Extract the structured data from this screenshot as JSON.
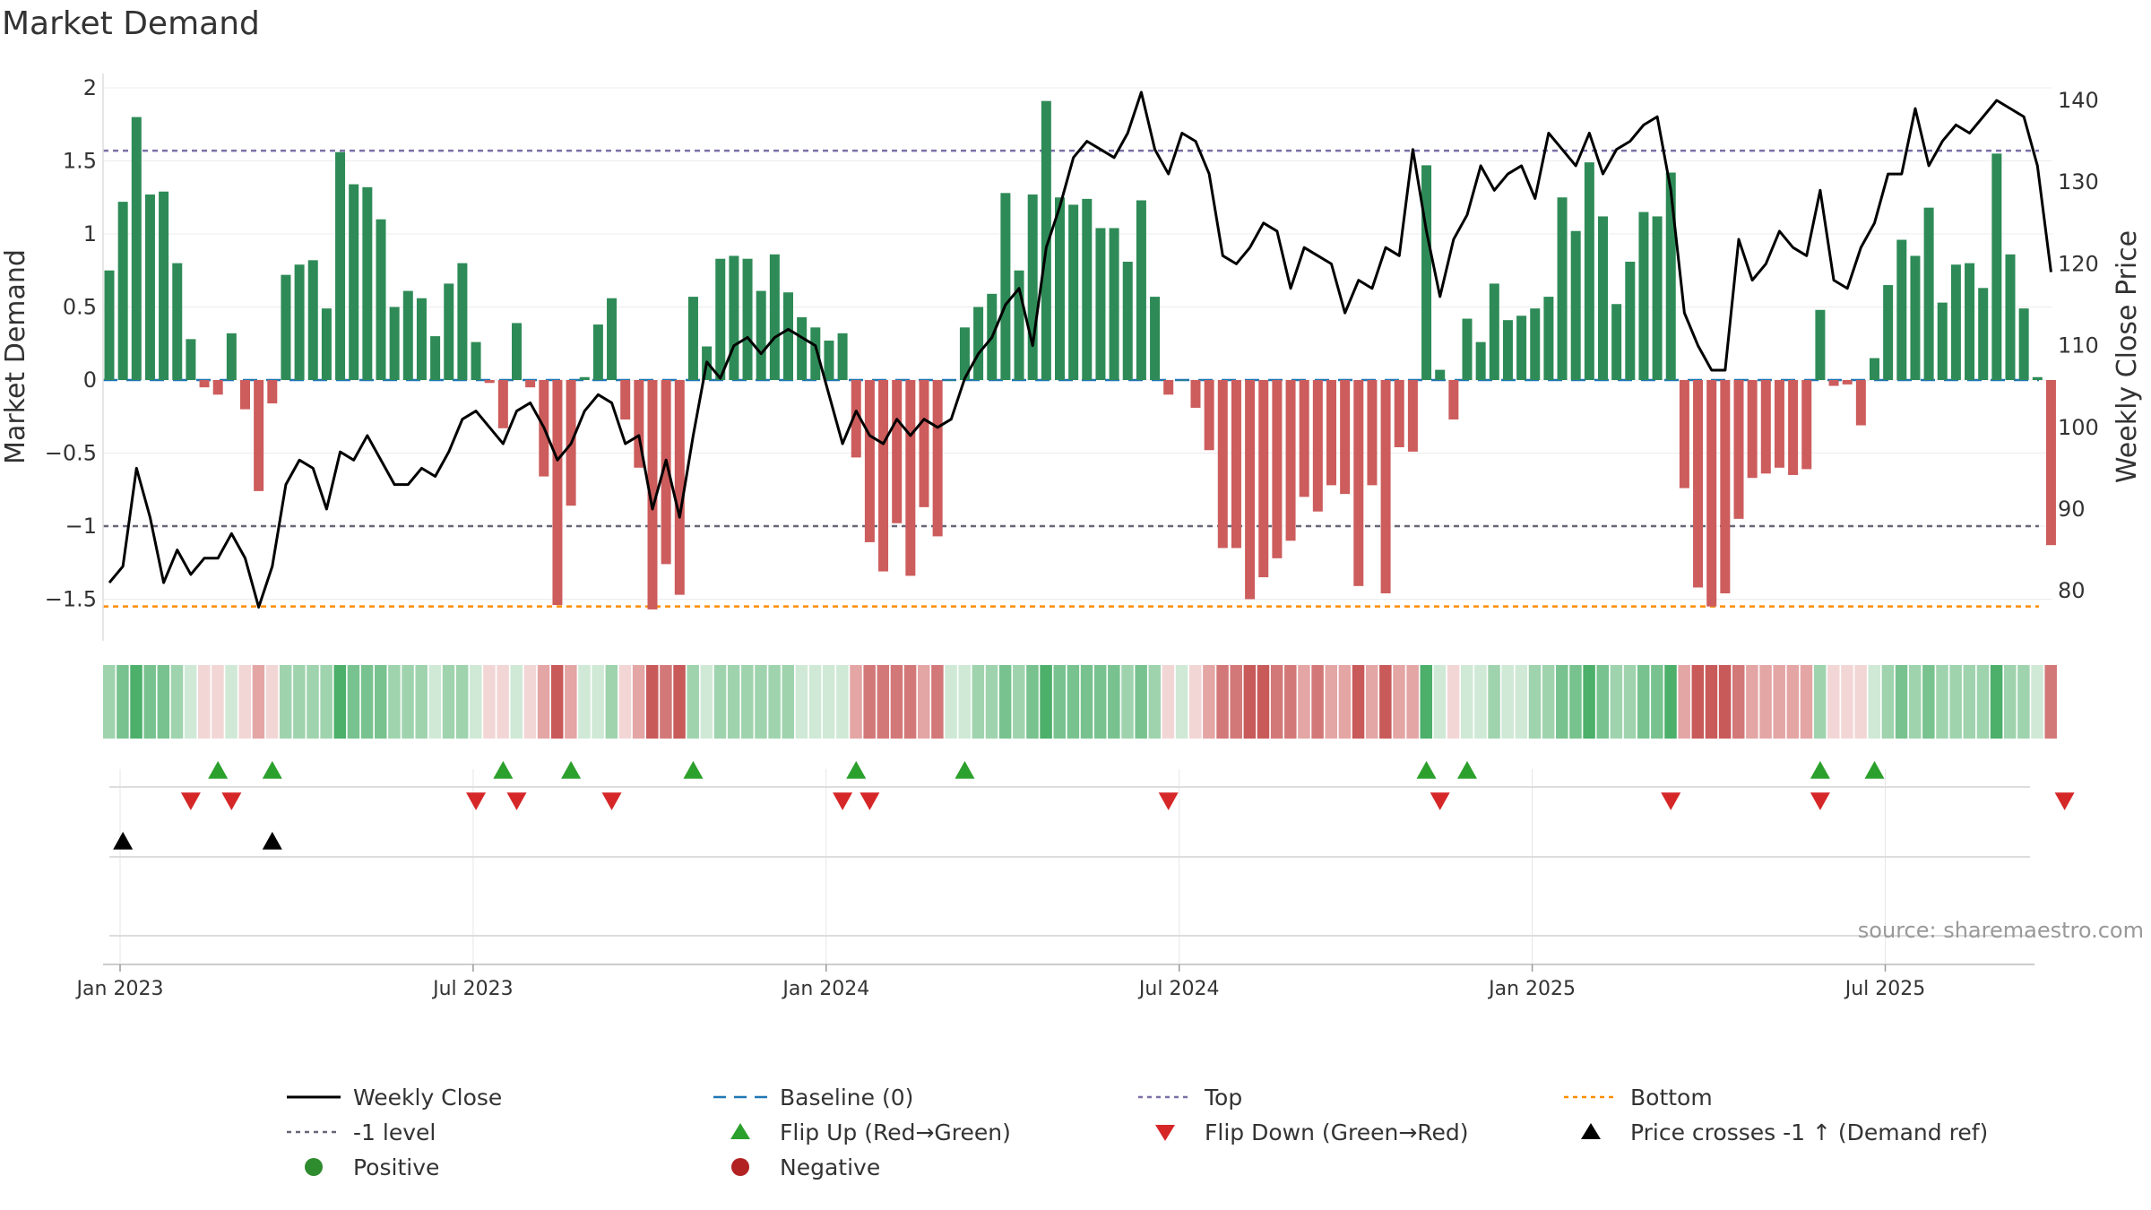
{
  "chart_data": {
    "type": "bar+line",
    "title": "Market Demand",
    "ylabel_left": "Market Demand",
    "ylabel_right": "Weekly Close Price",
    "ylim_left": [
      -1.75,
      2.0
    ],
    "ylim_right": [
      75,
      142
    ],
    "yticks_left": [
      2,
      1.5,
      1,
      0.5,
      0,
      -0.5,
      -1,
      -1.5
    ],
    "yticks_left_labels": [
      "2",
      "1.5",
      "1",
      "0.5",
      "0",
      "−0.5",
      "−1",
      "−1.5"
    ],
    "yticks_right": [
      140,
      130,
      120,
      110,
      100,
      90,
      80
    ],
    "xticks": [
      "Jan 2023",
      "Jul 2023",
      "Jan 2024",
      "Jul 2024",
      "Jan 2025",
      "Jul 2025"
    ],
    "xtick_week_index": [
      0,
      26,
      52,
      78,
      104,
      130
    ],
    "levels": {
      "top": 1.57,
      "bottom": -1.55,
      "minus_one": -1.0,
      "baseline": 0
    },
    "weeks": 144,
    "demand": [
      0.75,
      1.22,
      1.8,
      1.27,
      1.29,
      0.8,
      0.28,
      -0.05,
      -0.1,
      0.32,
      -0.2,
      -0.76,
      -0.16,
      0.72,
      0.79,
      0.82,
      0.49,
      1.56,
      1.34,
      1.32,
      1.1,
      0.5,
      0.61,
      0.56,
      0.3,
      0.66,
      0.8,
      0.26,
      -0.02,
      -0.33,
      0.39,
      -0.05,
      -0.66,
      -1.54,
      -0.86,
      0.02,
      0.38,
      0.56,
      -0.27,
      -0.6,
      -1.57,
      -1.26,
      -1.47,
      0.57,
      0.23,
      0.83,
      0.85,
      0.83,
      0.61,
      0.86,
      0.6,
      0.43,
      0.36,
      0.27,
      0.32,
      -0.53,
      -1.11,
      -1.31,
      -0.98,
      -1.34,
      -0.87,
      -1.07,
      0.0,
      0.36,
      0.5,
      0.59,
      1.28,
      0.75,
      1.27,
      1.91,
      1.25,
      1.2,
      1.24,
      1.04,
      1.04,
      0.81,
      1.23,
      0.57,
      -0.1,
      0.0,
      -0.19,
      -0.48,
      -1.15,
      -1.15,
      -1.5,
      -1.35,
      -1.22,
      -1.1,
      -0.8,
      -0.9,
      -0.72,
      -0.78,
      -1.41,
      -0.72,
      -1.46,
      -0.46,
      -0.49,
      1.47,
      0.07,
      -0.27,
      0.42,
      0.26,
      0.66,
      0.41,
      0.44,
      0.49,
      0.57,
      1.25,
      1.02,
      1.49,
      1.12,
      0.52,
      0.81,
      1.15,
      1.12,
      1.42,
      -0.74,
      -1.42,
      -1.55,
      -1.46,
      -0.95,
      -0.67,
      -0.64,
      -0.6,
      -0.65,
      -0.61,
      0.48,
      -0.04,
      -0.03,
      -0.31,
      0.15,
      0.65,
      0.96,
      0.85,
      1.18,
      0.53,
      0.79,
      0.8,
      0.63,
      1.55,
      0.86,
      0.49,
      0.02,
      -1.13
    ],
    "price": [
      81,
      83,
      95,
      89,
      81,
      85,
      82,
      84,
      84,
      87,
      84,
      78,
      83,
      93,
      96,
      95,
      90,
      97,
      96,
      99,
      96,
      93,
      93,
      95,
      94,
      97,
      101,
      102,
      100,
      98,
      102,
      103,
      100,
      96,
      98,
      102,
      104,
      103,
      98,
      99,
      90,
      96,
      89,
      99,
      108,
      106,
      110,
      111,
      109,
      111,
      112,
      111,
      110,
      104,
      98,
      102,
      99,
      98,
      101,
      99,
      101,
      100,
      101,
      106,
      109,
      111,
      115,
      117,
      110,
      122,
      127,
      133,
      135,
      134,
      133,
      136,
      141,
      134,
      131,
      136,
      135,
      131,
      121,
      120,
      122,
      125,
      124,
      117,
      122,
      121,
      120,
      114,
      118,
      117,
      122,
      121,
      134,
      124,
      116,
      123,
      126,
      132,
      129,
      131,
      132,
      128,
      136,
      134,
      132,
      136,
      131,
      134,
      135,
      137,
      138,
      129,
      114,
      110,
      107,
      107,
      123,
      118,
      120,
      124,
      122,
      121,
      129,
      118,
      117,
      122,
      125,
      131,
      131,
      139,
      132,
      135,
      137,
      136,
      138,
      140,
      139,
      138,
      132,
      119
    ],
    "flip_up_weeks": [
      8,
      12,
      29,
      34,
      43,
      55,
      63,
      97,
      100,
      126,
      130
    ],
    "flip_down_weeks": [
      6,
      9,
      27,
      30,
      37,
      54,
      56,
      78,
      98,
      115,
      126,
      144
    ],
    "price_cross_weeks": [
      1,
      12
    ],
    "colors": {
      "positive_bar": "#2e8b57",
      "negative_bar": "#cd5c5c",
      "price_line": "#000000",
      "baseline": "#1f77b4",
      "top": "#7c6fa8",
      "minus_one": "#666677",
      "bottom": "#ff8c00",
      "flip_up": "#2ca02c",
      "flip_down": "#d62728",
      "price_cross": "#000000",
      "positive_dot": "#2e8b2e",
      "negative_dot": "#b22222"
    },
    "legend": [
      {
        "label": "Weekly Close",
        "marker": "line-solid",
        "color": "#000000"
      },
      {
        "label": "Baseline (0)",
        "marker": "line-dashed",
        "color": "#1f77b4"
      },
      {
        "label": "Top",
        "marker": "line-dotted",
        "color": "#7c6fa8"
      },
      {
        "label": "Bottom",
        "marker": "line-dotted",
        "color": "#ff8c00"
      },
      {
        "label": "-1 level",
        "marker": "line-dotted",
        "color": "#666677"
      },
      {
        "label": "Flip Up (Red→Green)",
        "marker": "triangle-up",
        "color": "#2ca02c"
      },
      {
        "label": "Flip Down (Green→Red)",
        "marker": "triangle-down",
        "color": "#d62728"
      },
      {
        "label": "Price crosses -1 ↑ (Demand ref)",
        "marker": "triangle-up",
        "color": "#000000"
      },
      {
        "label": "Positive",
        "marker": "circle",
        "color": "#2e8b2e"
      },
      {
        "label": "Negative",
        "marker": "circle",
        "color": "#b22222"
      }
    ],
    "source": "source: sharemaestro.com"
  }
}
